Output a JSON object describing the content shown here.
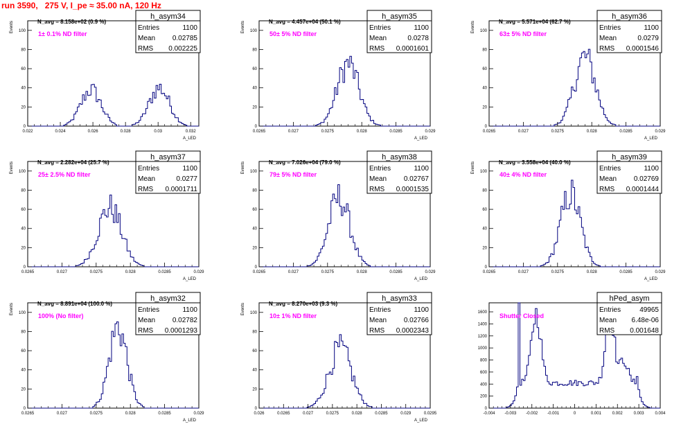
{
  "run_title": "run 3590,   275 V, I_pe ≈ 35.00 nA, 120 Hz",
  "stats_labels": {
    "entries": "Entries",
    "mean": "Mean",
    "rms": "RMS"
  },
  "colors": {
    "histogram": "#00007f",
    "annotation": "#ff00ff",
    "title": "#ff0000",
    "axis": "#000000"
  },
  "chart_data": [
    {
      "type": "bar",
      "name": "h_asym34",
      "note": "N_avg = 8.158e+02 (0.9 %)",
      "annotation": "1± 0.1% ND filter",
      "stats": {
        "entries": "1100",
        "mean": "0.02785",
        "rms": "0.002225"
      },
      "xlabel": "A_LED",
      "ylabel": "Events",
      "xlim": [
        0.022,
        0.0325
      ],
      "ylim": [
        0,
        110
      ],
      "xticks": [
        0.022,
        0.024,
        0.026,
        0.028,
        0.03,
        0.032
      ],
      "xtick_labels": [
        "0.022",
        "0.024",
        "0.026",
        "0.028",
        "0.03",
        "0.032"
      ],
      "yticks": [
        0,
        20,
        40,
        60,
        80,
        100
      ],
      "ytick_labels": [
        "0",
        "20",
        "40",
        "60",
        "80",
        "100"
      ],
      "peaks": [
        {
          "mu": 0.02588,
          "sigma": 0.00062,
          "height": 38
        },
        {
          "mu": 0.03008,
          "sigma": 0.00062,
          "height": 40
        }
      ]
    },
    {
      "type": "bar",
      "name": "h_asym35",
      "note": "N_avg = 4.457e+04 (50.1 %)",
      "annotation": "50± 5% ND filter",
      "stats": {
        "entries": "1100",
        "mean": "0.0278",
        "rms": "0.0001601"
      },
      "xlabel": "A_LED",
      "ylabel": "Events",
      "xlim": [
        0.0265,
        0.029
      ],
      "ylim": [
        0,
        110
      ],
      "xticks": [
        0.0265,
        0.027,
        0.0275,
        0.028,
        0.0285,
        0.029
      ],
      "xtick_labels": [
        "0.0265",
        "0.027",
        "0.0275",
        "0.028",
        "0.0285",
        "0.029"
      ],
      "yticks": [
        0,
        20,
        40,
        60,
        80,
        100
      ],
      "ytick_labels": [
        "0",
        "20",
        "40",
        "60",
        "80",
        "100"
      ],
      "peaks": [
        {
          "mu": 0.0278,
          "sigma": 0.00016,
          "height": 65
        }
      ]
    },
    {
      "type": "bar",
      "name": "h_asym36",
      "note": "N_avg = 5.571e+04 (62.7 %)",
      "annotation": "63± 5% ND filter",
      "stats": {
        "entries": "1100",
        "mean": "0.0279",
        "rms": "0.0001546"
      },
      "xlabel": "A_LED",
      "ylabel": "Events",
      "xlim": [
        0.0265,
        0.029
      ],
      "ylim": [
        0,
        110
      ],
      "xticks": [
        0.0265,
        0.027,
        0.0275,
        0.028,
        0.0285,
        0.029
      ],
      "xtick_labels": [
        "0.0265",
        "0.027",
        "0.0275",
        "0.028",
        "0.0285",
        "0.029"
      ],
      "yticks": [
        0,
        20,
        40,
        60,
        80,
        100
      ],
      "ytick_labels": [
        "0",
        "20",
        "40",
        "60",
        "80",
        "100"
      ],
      "peaks": [
        {
          "mu": 0.0279,
          "sigma": 0.000155,
          "height": 72
        }
      ]
    },
    {
      "type": "bar",
      "name": "h_asym37",
      "note": "N_avg = 2.282e+04 (25.7 %)",
      "annotation": "25± 2.5% ND filter",
      "stats": {
        "entries": "1100",
        "mean": "0.0277",
        "rms": "0.0001711"
      },
      "xlabel": "A_LED",
      "ylabel": "Events",
      "xlim": [
        0.0265,
        0.029
      ],
      "ylim": [
        0,
        110
      ],
      "xticks": [
        0.0265,
        0.027,
        0.0275,
        0.028,
        0.0285,
        0.029
      ],
      "xtick_labels": [
        "0.0265",
        "0.027",
        "0.0275",
        "0.028",
        "0.0285",
        "0.029"
      ],
      "yticks": [
        0,
        20,
        40,
        60,
        80,
        100
      ],
      "ytick_labels": [
        "0",
        "20",
        "40",
        "60",
        "80",
        "100"
      ],
      "peaks": [
        {
          "mu": 0.0277,
          "sigma": 0.00017,
          "height": 62
        }
      ]
    },
    {
      "type": "bar",
      "name": "h_asym38",
      "note": "N_avg = 7.026e+04 (79.0 %)",
      "annotation": "79± 5% ND filter",
      "stats": {
        "entries": "1100",
        "mean": "0.02767",
        "rms": "0.0001535"
      },
      "xlabel": "A_LED",
      "ylabel": "Events",
      "xlim": [
        0.0265,
        0.029
      ],
      "ylim": [
        0,
        110
      ],
      "xticks": [
        0.0265,
        0.027,
        0.0275,
        0.028,
        0.0285,
        0.029
      ],
      "xtick_labels": [
        "0.0265",
        "0.027",
        "0.0275",
        "0.028",
        "0.0285",
        "0.029"
      ],
      "yticks": [
        0,
        20,
        40,
        60,
        80,
        100
      ],
      "ytick_labels": [
        "0",
        "20",
        "40",
        "60",
        "80",
        "100"
      ],
      "peaks": [
        {
          "mu": 0.02767,
          "sigma": 0.000155,
          "height": 72
        }
      ]
    },
    {
      "type": "bar",
      "name": "h_asym39",
      "note": "N_avg = 3.558e+04 (40.0 %)",
      "annotation": "40± 4% ND filter",
      "stats": {
        "entries": "1100",
        "mean": "0.02769",
        "rms": "0.0001444"
      },
      "xlabel": "A_LED",
      "ylabel": "Events",
      "xlim": [
        0.0265,
        0.029
      ],
      "ylim": [
        0,
        110
      ],
      "xticks": [
        0.0265,
        0.027,
        0.0275,
        0.028,
        0.0285,
        0.029
      ],
      "xtick_labels": [
        "0.0265",
        "0.027",
        "0.0275",
        "0.028",
        "0.0285",
        "0.029"
      ],
      "yticks": [
        0,
        20,
        40,
        60,
        80,
        100
      ],
      "ytick_labels": [
        "0",
        "20",
        "40",
        "60",
        "80",
        "100"
      ],
      "peaks": [
        {
          "mu": 0.02769,
          "sigma": 0.000145,
          "height": 76
        }
      ]
    },
    {
      "type": "bar",
      "name": "h_asym32",
      "note": "N_avg = 8.891e+04 (100.0 %)",
      "annotation": "100% (No filter)",
      "stats": {
        "entries": "1100",
        "mean": "0.02782",
        "rms": "0.0001293"
      },
      "xlabel": "A_LED",
      "ylabel": "Events",
      "xlim": [
        0.0265,
        0.029
      ],
      "ylim": [
        0,
        110
      ],
      "xticks": [
        0.0265,
        0.027,
        0.0275,
        0.028,
        0.0285,
        0.029
      ],
      "xtick_labels": [
        "0.0265",
        "0.027",
        "0.0275",
        "0.028",
        "0.0285",
        "0.029"
      ],
      "yticks": [
        0,
        20,
        40,
        60,
        80,
        100
      ],
      "ytick_labels": [
        "0",
        "20",
        "40",
        "60",
        "80",
        "100"
      ],
      "peaks": [
        {
          "mu": 0.02782,
          "sigma": 0.00013,
          "height": 85
        }
      ]
    },
    {
      "type": "bar",
      "name": "h_asym33",
      "note": "N_avg = 8.270e+03 (9.3 %)",
      "annotation": "10± 1% ND filter",
      "stats": {
        "entries": "1100",
        "mean": "0.02766",
        "rms": "0.0002343"
      },
      "xlabel": "A_LED",
      "ylabel": "Events",
      "xlim": [
        0.026,
        0.0295
      ],
      "ylim": [
        0,
        110
      ],
      "xticks": [
        0.026,
        0.0265,
        0.027,
        0.0275,
        0.028,
        0.0285,
        0.029,
        0.0295
      ],
      "xtick_labels": [
        "0.026",
        "0.0265",
        "0.027",
        "0.0275",
        "0.028",
        "0.0285",
        "0.029",
        "0.0295"
      ],
      "yticks": [
        0,
        20,
        40,
        60,
        80,
        100
      ],
      "ytick_labels": [
        "0",
        "20",
        "40",
        "60",
        "80",
        "100"
      ],
      "peaks": [
        {
          "mu": 0.02766,
          "sigma": 0.00023,
          "height": 62
        }
      ]
    },
    {
      "type": "bar",
      "name": "hPed_asym",
      "note": "",
      "annotation": "Shutter Closed",
      "stats": {
        "entries": "49965",
        "mean": "6.48e-06",
        "rms": "0.001648"
      },
      "xlabel": "",
      "ylabel": "",
      "xlim": [
        -0.004,
        0.004
      ],
      "ylim": [
        0,
        1750
      ],
      "xticks": [
        -0.004,
        -0.003,
        -0.002,
        -0.001,
        0,
        0.001,
        0.002,
        0.003,
        0.004
      ],
      "xtick_labels": [
        "-0.004",
        "-0.003",
        "-0.002",
        "-0.001",
        "0",
        "0.001",
        "0.002",
        "0.003",
        "0.004"
      ],
      "yticks": [
        0,
        200,
        400,
        600,
        800,
        1000,
        1200,
        1400,
        1600
      ],
      "ytick_labels": [
        "0",
        "200",
        "400",
        "600",
        "800",
        "1000",
        "1200",
        "1400",
        "1600"
      ],
      "bimodal": {
        "edges": [
          -0.0026,
          0.0029
        ],
        "base": 420,
        "peaks": [
          {
            "mu": -0.0018,
            "sigma": 0.00022,
            "height": 1150
          },
          {
            "mu": 0.00165,
            "sigma": 0.0002,
            "height": 1230
          },
          {
            "mu": 0.0023,
            "sigma": 0.00018,
            "height": 380
          }
        ]
      }
    }
  ]
}
